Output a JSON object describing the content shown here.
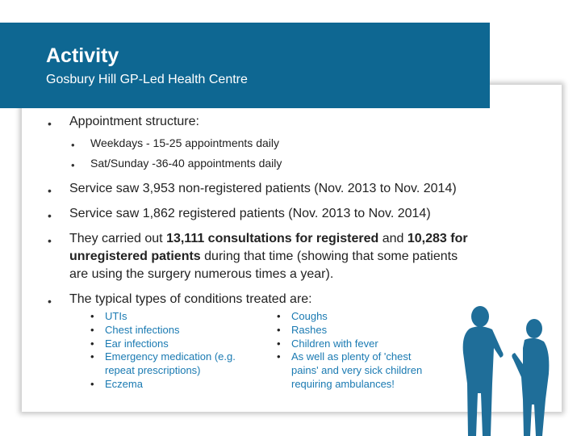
{
  "header": {
    "title": "Activity",
    "subtitle": "Gosbury Hill GP-Led Health Centre"
  },
  "bullet_glyph": "•",
  "content": {
    "appointment": {
      "heading": "Appointment structure:",
      "items": [
        "Weekdays - 15-25 appointments daily",
        "Sat/Sunday -36-40 appointments daily"
      ]
    },
    "non_registered": "Service saw 3,953 non-registered patients (Nov. 2013 to Nov. 2014)",
    "registered": "Service saw 1,862 registered patients (Nov. 2013 to Nov. 2014)",
    "consultations": {
      "part1": "They carried out ",
      "bold1": "13,111 consultations for registered",
      "part2": " and ",
      "bold2": "10,283 for",
      "line2_bold": "unregistered patients",
      "line2_rest": " during that time (showing that some patients",
      "line3": "are using the surgery numerous times a year)."
    },
    "conditions": {
      "heading": "The typical types of conditions treated are:",
      "left": [
        "UTIs",
        "Chest infections",
        "Ear infections",
        "Emergency medication (e.g.",
        "repeat prescriptions)",
        "Eczema"
      ],
      "right": [
        "Coughs",
        "Rashes",
        "Children with fever",
        "As well as plenty of 'chest",
        "pains' and very sick children",
        "requiring ambulances!"
      ]
    }
  },
  "colors": {
    "header_bg": "#0e6792",
    "condition_text": "#1a7ab2",
    "figure": "#1f6e99"
  },
  "illustration": {
    "icon": "two-people-talking-silhouette"
  }
}
